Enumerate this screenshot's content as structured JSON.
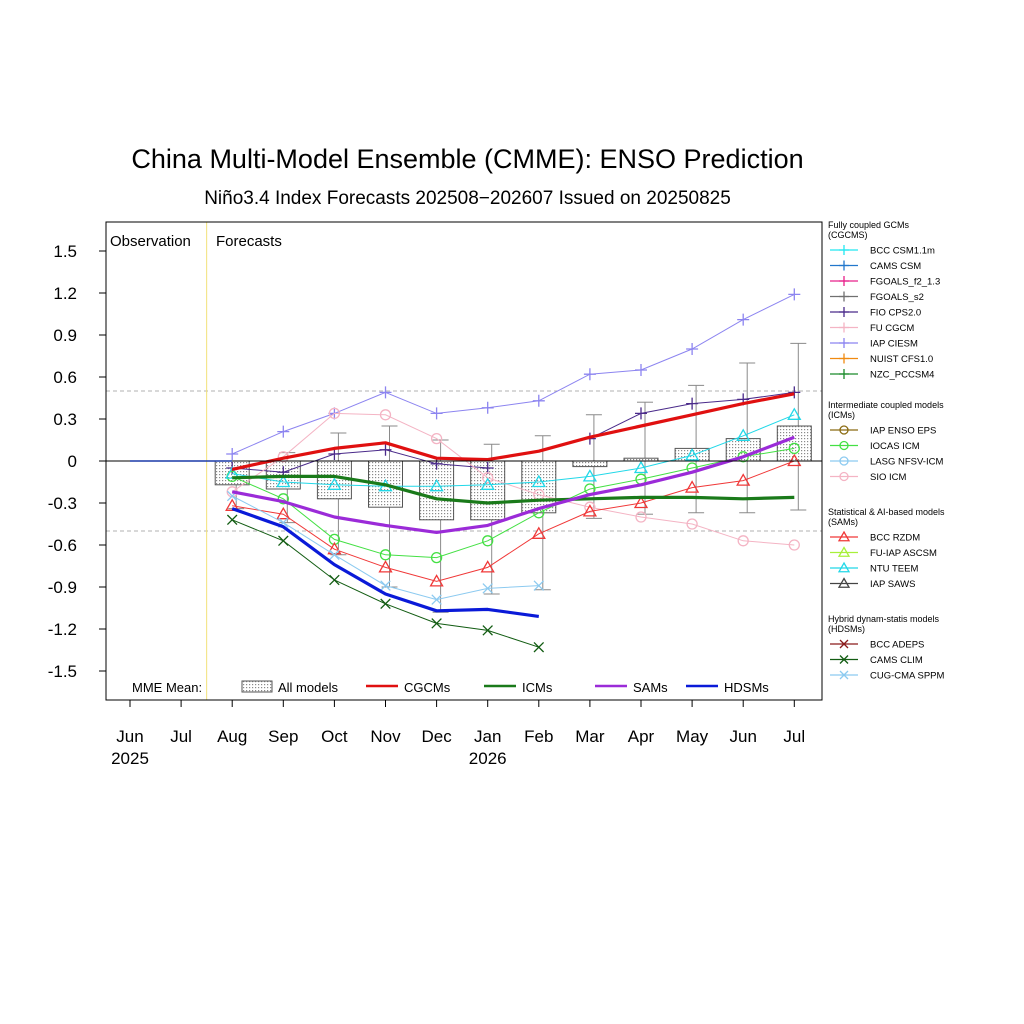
{
  "title": "China Multi-Model Ensemble (CMME): ENSO Prediction",
  "subtitle": "Niño3.4 Index Forecasts 202508−202607 Issued on 20250825",
  "chart_data": {
    "type": "line",
    "title": "China Multi-Model Ensemble (CMME): ENSO Prediction",
    "subtitle": "Niño3.4 Index Forecasts 202508−202607 Issued on 20250825",
    "xlabel": "",
    "ylabel": "",
    "ylim": [
      -1.7,
      1.7
    ],
    "yticks": [
      -1.5,
      -1.2,
      -0.9,
      -0.6,
      -0.3,
      0,
      0.3,
      0.6,
      0.9,
      1.2,
      1.5
    ],
    "ytick_labels": [
      "-1.5",
      "-1.2",
      "-0.9",
      "-0.6",
      "-0.3",
      "0",
      "0.3",
      "0.6",
      "0.9",
      "1.2",
      "1.5"
    ],
    "months": [
      "Jun",
      "Jul",
      "Aug",
      "Sep",
      "Oct",
      "Nov",
      "Dec",
      "Jan",
      "Feb",
      "Mar",
      "Apr",
      "May",
      "Jun",
      "Jul"
    ],
    "year_labels": [
      {
        "index": 0,
        "text": "2025"
      },
      {
        "index": 7,
        "text": "2026"
      }
    ],
    "threshold_lines": [
      0.5,
      -0.5
    ],
    "region_labels": {
      "observation": "Observation",
      "forecasts": "Forecasts"
    },
    "observation": [
      0,
      0
    ],
    "mme_label": "MME Mean:",
    "mme_legend": [
      {
        "key": "all",
        "label": "All models",
        "color": "#9a9a9a"
      },
      {
        "key": "cgcms",
        "label": "CGCMs",
        "color": "#e01010"
      },
      {
        "key": "icms",
        "label": "ICMs",
        "color": "#1a7a1a"
      },
      {
        "key": "sams",
        "label": "SAMs",
        "color": "#9b2bd8"
      },
      {
        "key": "hdsms",
        "label": "HDSMs",
        "color": "#0a1ad8"
      }
    ],
    "all_models": {
      "box_low": [
        -0.17,
        -0.2,
        -0.27,
        -0.33,
        -0.42,
        -0.42,
        -0.37,
        -0.04,
        0,
        0,
        0,
        0
      ],
      "box_high": [
        0,
        0,
        0,
        0,
        0,
        0,
        0,
        0,
        0.02,
        0.09,
        0.16,
        0.25
      ],
      "whisker_low": [
        -0.34,
        -0.44,
        -0.67,
        -0.9,
        -1.08,
        -0.95,
        -0.92,
        -0.41,
        -0.38,
        -0.37,
        -0.37,
        -0.35
      ],
      "whisker_high": [
        -0.08,
        0.06,
        0.2,
        0.25,
        0.15,
        0.12,
        0.18,
        0.33,
        0.42,
        0.54,
        0.7,
        0.84
      ]
    },
    "mme_series": [
      {
        "key": "cgcms",
        "name": "CGCMs",
        "color": "#e01010",
        "values": [
          -0.06,
          0.02,
          0.09,
          0.13,
          0.02,
          0.01,
          0.07,
          0.17,
          0.25,
          0.33,
          0.41,
          0.48
        ]
      },
      {
        "key": "icms",
        "name": "ICMs",
        "color": "#1a7a1a",
        "values": [
          -0.12,
          -0.11,
          -0.11,
          -0.17,
          -0.27,
          -0.3,
          -0.28,
          -0.27,
          -0.26,
          -0.26,
          -0.27,
          -0.26
        ]
      },
      {
        "key": "sams",
        "name": "SAMs",
        "color": "#9b2bd8",
        "values": [
          -0.22,
          -0.29,
          -0.4,
          -0.46,
          -0.51,
          -0.46,
          -0.34,
          -0.24,
          -0.17,
          -0.08,
          0.03,
          0.17
        ]
      },
      {
        "key": "hdsms",
        "name": "HDSMs",
        "color": "#0a1ad8",
        "values": [
          -0.34,
          -0.47,
          -0.74,
          -0.95,
          -1.07,
          -1.06,
          -1.11,
          null,
          null,
          null,
          null,
          null
        ]
      }
    ],
    "model_series": [
      {
        "name": "IAP CIESM",
        "group": "cgcms",
        "color": "#8c84f0",
        "marker": "plus",
        "values": [
          0.05,
          0.21,
          0.34,
          0.49,
          0.34,
          0.38,
          0.43,
          0.62,
          0.65,
          0.8,
          1.01,
          1.19
        ]
      },
      {
        "name": "FIO CPS2.0",
        "group": "cgcms",
        "color": "#4a2a8a",
        "marker": "plus",
        "values": [
          -0.05,
          -0.08,
          0.05,
          0.08,
          -0.02,
          -0.05,
          null,
          0.16,
          0.34,
          0.41,
          0.44,
          0.49
        ]
      },
      {
        "name": "SIO ICM",
        "group": "icms",
        "color": "#f4b4c4",
        "marker": "circle",
        "values": [
          -0.22,
          0.03,
          0.34,
          0.33,
          0.16,
          -0.12,
          -0.24,
          -0.33,
          -0.4,
          -0.45,
          -0.57,
          -0.6
        ]
      },
      {
        "name": "IOCAS ICM",
        "group": "icms",
        "color": "#44e044",
        "marker": "circle",
        "values": [
          -0.11,
          -0.27,
          -0.56,
          -0.67,
          -0.69,
          -0.57,
          -0.37,
          -0.2,
          -0.13,
          -0.05,
          0.03,
          0.09
        ]
      },
      {
        "name": "BCC RZDM",
        "group": "sams",
        "color": "#f03838",
        "marker": "triangle",
        "values": [
          -0.32,
          -0.38,
          -0.63,
          -0.76,
          -0.86,
          -0.76,
          -0.52,
          -0.36,
          -0.3,
          -0.19,
          -0.14,
          0.0
        ]
      },
      {
        "name": "NTU TEEM",
        "group": "sams",
        "color": "#22d8e8",
        "marker": "triangle",
        "values": [
          -0.09,
          -0.15,
          -0.17,
          -0.18,
          -0.18,
          -0.17,
          -0.15,
          -0.11,
          -0.05,
          0.04,
          0.18,
          0.33
        ]
      },
      {
        "name": "CAMS CLIM",
        "group": "hdsms",
        "color": "#125c12",
        "marker": "x",
        "values": [
          -0.42,
          -0.57,
          -0.85,
          -1.02,
          -1.16,
          -1.21,
          -1.33,
          null,
          null,
          null,
          null,
          null
        ]
      },
      {
        "name": "CUG-CMA SPPM",
        "group": "hdsms",
        "color": "#8ccaf0",
        "marker": "x",
        "values": [
          -0.25,
          -0.44,
          -0.67,
          -0.89,
          -0.99,
          -0.91,
          -0.89,
          null,
          null,
          null,
          null,
          null
        ]
      }
    ],
    "legend_groups": [
      {
        "title": "Fully coupled GCMs\n(CGCMS)",
        "items": [
          {
            "label": "BCC CSM1.1m",
            "color": "#22e8f0",
            "marker": "plus"
          },
          {
            "label": "CAMS CSM",
            "color": "#2277cc",
            "marker": "plus"
          },
          {
            "label": "FGOALS_f2_1.3",
            "color": "#e8208a",
            "marker": "plus"
          },
          {
            "label": "FGOALS_s2",
            "color": "#707070",
            "marker": "plus"
          },
          {
            "label": "FIO CPS2.0",
            "color": "#4a2a8a",
            "marker": "plus"
          },
          {
            "label": "FU CGCM",
            "color": "#f4b4c4",
            "marker": "plus"
          },
          {
            "label": "IAP CIESM",
            "color": "#8c84f0",
            "marker": "plus"
          },
          {
            "label": "NUIST CFS1.0",
            "color": "#f08a10",
            "marker": "plus"
          },
          {
            "label": "NZC_PCCSM4",
            "color": "#1a8a2a",
            "marker": "plus"
          }
        ]
      },
      {
        "title": "Intermediate coupled models\n(ICMs)",
        "items": [
          {
            "label": "IAP ENSO EPS",
            "color": "#8a6a10",
            "marker": "circle"
          },
          {
            "label": "IOCAS ICM",
            "color": "#44e044",
            "marker": "circle"
          },
          {
            "label": "LASG NFSV-ICM",
            "color": "#8ccaf0",
            "marker": "circle"
          },
          {
            "label": "SIO ICM",
            "color": "#f4b4c4",
            "marker": "circle"
          }
        ]
      },
      {
        "title": "Statistical & AI-based models\n(SAMs)",
        "items": [
          {
            "label": "BCC RZDM",
            "color": "#f03838",
            "marker": "triangle"
          },
          {
            "label": "FU-IAP ASCSM",
            "color": "#a8f03a",
            "marker": "triangle"
          },
          {
            "label": "NTU TEEM",
            "color": "#22d8e8",
            "marker": "triangle"
          },
          {
            "label": "IAP SAWS",
            "color": "#444444",
            "marker": "triangle"
          }
        ]
      },
      {
        "title": "Hybrid dynam-statis models\n(HDSMs)",
        "items": [
          {
            "label": "BCC ADEPS",
            "color": "#8a1a1a",
            "marker": "x"
          },
          {
            "label": "CAMS CLIM",
            "color": "#125c12",
            "marker": "x"
          },
          {
            "label": "CUG-CMA SPPM",
            "color": "#8ccaf0",
            "marker": "x"
          }
        ]
      }
    ],
    "grid": false,
    "legend_position": "right"
  }
}
